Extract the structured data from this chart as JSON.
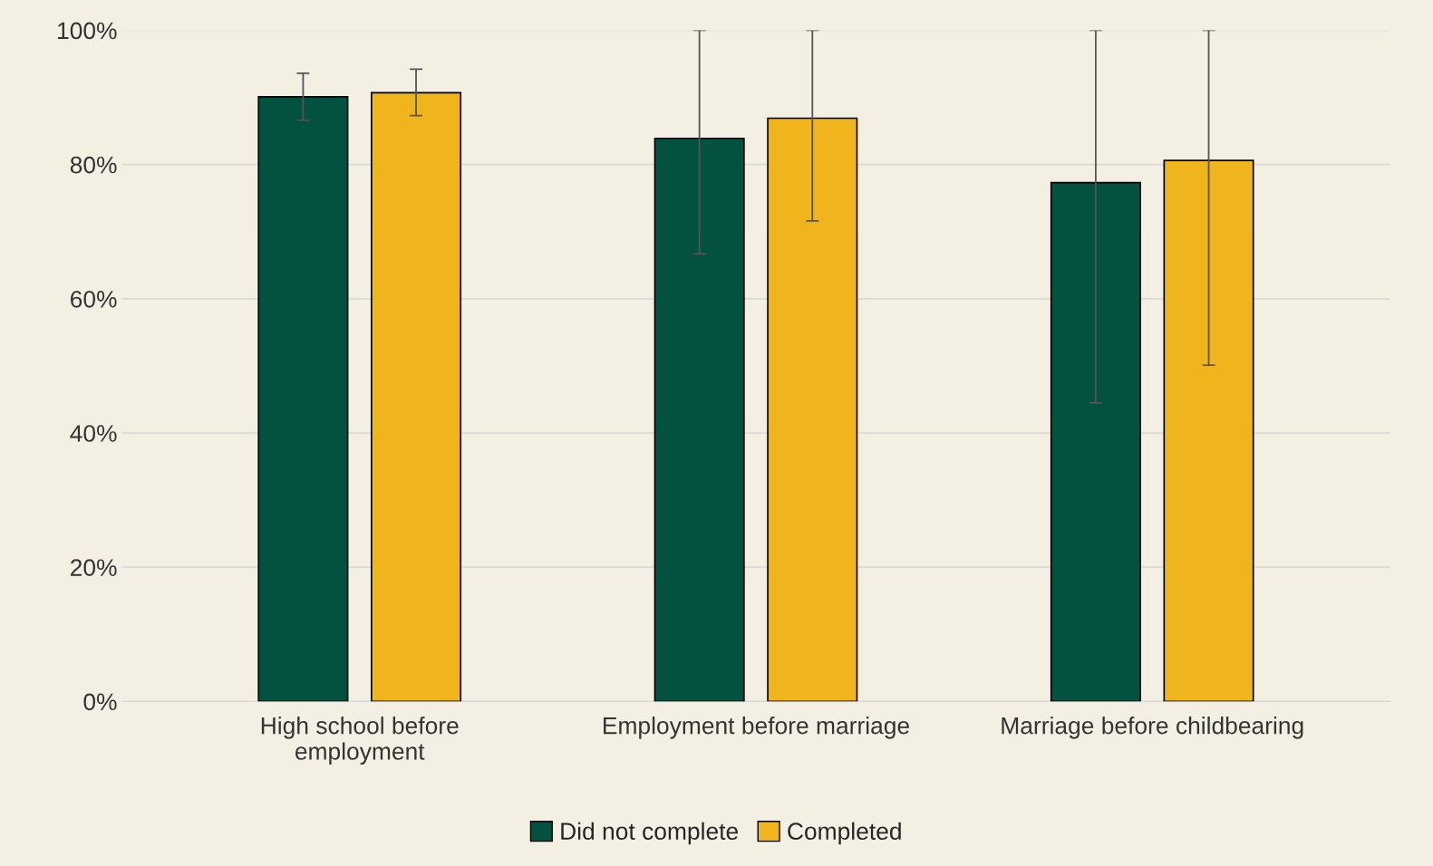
{
  "chart_data": {
    "type": "bar",
    "categories": [
      "High school before\nemployment",
      "Employment before marriage",
      "Marriage before childbearing"
    ],
    "series": [
      {
        "name": "Did not complete",
        "color": "#03513f",
        "values": [
          90.1,
          83.9,
          77.3
        ],
        "errors": [
          [
            86.6,
            93.6
          ],
          [
            66.7,
            100
          ],
          [
            44.5,
            100
          ]
        ]
      },
      {
        "name": "Completed",
        "color": "#f0b41c",
        "values": [
          90.7,
          86.9,
          80.6
        ],
        "errors": [
          [
            87.3,
            94.2
          ],
          [
            71.6,
            100
          ],
          [
            50.1,
            100
          ]
        ]
      }
    ],
    "ylim": [
      0,
      100
    ],
    "yticks": [
      {
        "value": 0,
        "label": "0%"
      },
      {
        "value": 20,
        "label": "20%"
      },
      {
        "value": 40,
        "label": "40%"
      },
      {
        "value": 60,
        "label": "60%"
      },
      {
        "value": 80,
        "label": "80%"
      },
      {
        "value": 100,
        "label": "100%"
      }
    ],
    "grid": "y",
    "legend": "bottom"
  }
}
